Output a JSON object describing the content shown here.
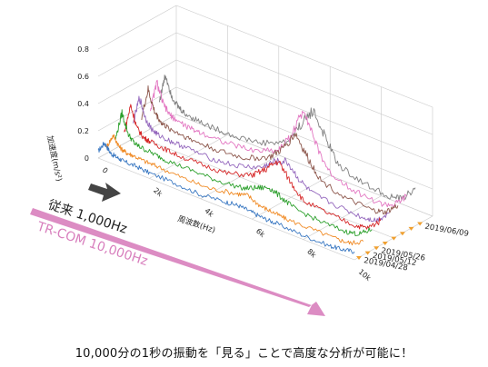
{
  "chart_data": {
    "type": "line",
    "subtype": "3d-waterfall",
    "xlabel": "周波数(Hz)",
    "ylabel": "加速度(m/s²)",
    "x_ticks": [
      "0",
      "2k",
      "4k",
      "6k",
      "8k",
      "10k"
    ],
    "y_ticks": [
      "0",
      "0.2",
      "0.4",
      "0.6",
      "0.8"
    ],
    "xlim": [
      0,
      10000
    ],
    "ylim": [
      0,
      0.8
    ],
    "grid": true,
    "x": [
      0,
      250,
      500,
      750,
      1000,
      1500,
      2000,
      3000,
      4000,
      5000,
      5500,
      6000,
      6500,
      7000,
      8000,
      9000,
      9500,
      10000
    ],
    "series": [
      {
        "name": "2019/04/28",
        "color": "#3a78c2",
        "values": [
          0.05,
          0.13,
          0.07,
          0.06,
          0.05,
          0.05,
          0.04,
          0.04,
          0.03,
          0.05,
          0.06,
          0.05,
          0.04,
          0.04,
          0.03,
          0.03,
          0.04,
          0.06
        ]
      },
      {
        "name": "2019/05/12",
        "color": "#f08a24",
        "values": [
          0.05,
          0.15,
          0.08,
          0.06,
          0.06,
          0.05,
          0.05,
          0.04,
          0.04,
          0.08,
          0.1,
          0.06,
          0.05,
          0.04,
          0.04,
          0.04,
          0.05,
          0.1
        ]
      },
      {
        "name": "2019/05/26",
        "color": "#2ca02c",
        "values": [
          0.07,
          0.28,
          0.14,
          0.09,
          0.08,
          0.07,
          0.06,
          0.06,
          0.06,
          0.08,
          0.12,
          0.16,
          0.12,
          0.08,
          0.06,
          0.06,
          0.08,
          0.15
        ]
      },
      {
        "name": "",
        "color": "#d62728",
        "values": [
          0.08,
          0.3,
          0.15,
          0.1,
          0.09,
          0.08,
          0.07,
          0.07,
          0.08,
          0.14,
          0.22,
          0.32,
          0.2,
          0.1,
          0.08,
          0.07,
          0.09,
          0.18
        ]
      },
      {
        "name": "",
        "color": "#9467bd",
        "values": [
          0.1,
          0.32,
          0.18,
          0.12,
          0.1,
          0.09,
          0.09,
          0.08,
          0.1,
          0.16,
          0.24,
          0.28,
          0.18,
          0.12,
          0.1,
          0.09,
          0.11,
          0.2
        ]
      },
      {
        "name": "",
        "color": "#8c564b",
        "values": [
          0.12,
          0.34,
          0.2,
          0.14,
          0.12,
          0.11,
          0.1,
          0.1,
          0.12,
          0.2,
          0.3,
          0.45,
          0.3,
          0.18,
          0.12,
          0.11,
          0.13,
          0.22
        ]
      },
      {
        "name": "",
        "color": "#e377c2",
        "values": [
          0.14,
          0.36,
          0.22,
          0.16,
          0.14,
          0.12,
          0.12,
          0.12,
          0.14,
          0.22,
          0.36,
          0.6,
          0.35,
          0.2,
          0.14,
          0.12,
          0.15,
          0.25
        ]
      },
      {
        "name": "2019/06/09",
        "color": "#7f7f7f",
        "values": [
          0.16,
          0.38,
          0.24,
          0.18,
          0.15,
          0.14,
          0.13,
          0.13,
          0.16,
          0.24,
          0.4,
          0.55,
          0.38,
          0.22,
          0.16,
          0.14,
          0.16,
          0.28
        ]
      }
    ]
  },
  "banner": {
    "old_label": "従来 1,000Hz",
    "new_label": "TR-COM 10,000Hz",
    "old_color": "#444444",
    "new_color": "#d87fbd"
  },
  "caption": "10,000分の1秒の振動を「見る」ことで高度な分析が可能に！"
}
